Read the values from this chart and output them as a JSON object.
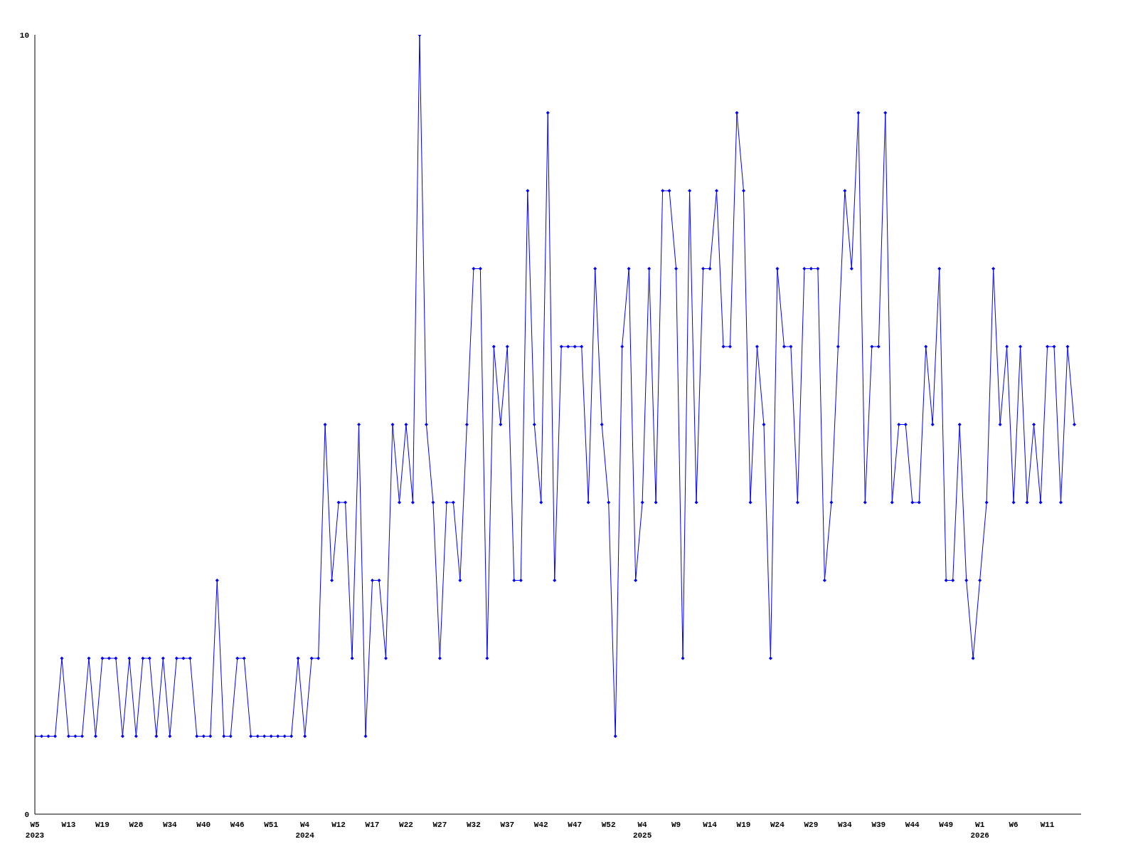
{
  "chart_data": {
    "type": "line",
    "categories": [
      "W5\n2023",
      null,
      null,
      null,
      null,
      "W13",
      null,
      null,
      null,
      null,
      "W19",
      null,
      null,
      null,
      null,
      "W28",
      null,
      null,
      null,
      null,
      "W34",
      null,
      null,
      null,
      null,
      "W40",
      null,
      null,
      null,
      null,
      "W46",
      null,
      null,
      null,
      null,
      "W51",
      null,
      null,
      null,
      null,
      "W4\n2024",
      null,
      null,
      null,
      null,
      "W12",
      null,
      null,
      null,
      null,
      "W17",
      null,
      null,
      null,
      null,
      "W22",
      null,
      null,
      null,
      null,
      "W27",
      null,
      null,
      null,
      null,
      "W32",
      null,
      null,
      null,
      null,
      "W37",
      null,
      null,
      null,
      null,
      "W42",
      null,
      null,
      null,
      null,
      "W47",
      null,
      null,
      null,
      null,
      "W52",
      null,
      null,
      null,
      null,
      "W4\n2025",
      null,
      null,
      null,
      null,
      "W9",
      null,
      null,
      null,
      null,
      "W14",
      null,
      null,
      null,
      null,
      "W19",
      null,
      null,
      null,
      null,
      "W24",
      null,
      null,
      null,
      null,
      "W29",
      null,
      null,
      null,
      null,
      "W34",
      null,
      null,
      null,
      null,
      "W39",
      null,
      null,
      null,
      null,
      "W44",
      null,
      null,
      null,
      null,
      "W49",
      null,
      null,
      null,
      null,
      "W1\n2026",
      null,
      null,
      null,
      null,
      "W6",
      null,
      null,
      null,
      null,
      "W11",
      null,
      null,
      null,
      null
    ],
    "series": [
      {
        "color": "#0000ff",
        "values": [
          1,
          1,
          1,
          1,
          2,
          1,
          1,
          1,
          2,
          1,
          2,
          2,
          2,
          1,
          2,
          1,
          2,
          2,
          1,
          2,
          1,
          2,
          2,
          2,
          1,
          1,
          1,
          3,
          1,
          1,
          2,
          2,
          1,
          1,
          1,
          1,
          1,
          1,
          1,
          2,
          1,
          2,
          2,
          5,
          3,
          4,
          4,
          2,
          5,
          1,
          3,
          3,
          2,
          5,
          4,
          5,
          4,
          10,
          5,
          4,
          2,
          4,
          4,
          3,
          5,
          7,
          7,
          2,
          6,
          5,
          6,
          3,
          3,
          8,
          5,
          4,
          9,
          3,
          6,
          6,
          6,
          6,
          4,
          7,
          5,
          4,
          1,
          6,
          7,
          3,
          4,
          7,
          4,
          8,
          8,
          7,
          2,
          8,
          4,
          7,
          7,
          8,
          6,
          6,
          9,
          8,
          4,
          6,
          5,
          2,
          7,
          6,
          6,
          4,
          7,
          7,
          7,
          3,
          4,
          6,
          8,
          7,
          9,
          4,
          6,
          6,
          9,
          4,
          5,
          5,
          4,
          4,
          6,
          5,
          7,
          3,
          3,
          5,
          3,
          2,
          3,
          4,
          7,
          5,
          6,
          4,
          6,
          4,
          5,
          4,
          6,
          6,
          4,
          6,
          5
        ]
      }
    ],
    "ylim": [
      0,
      10
    ],
    "yticks": [
      0,
      10
    ],
    "grid": false,
    "legend": false,
    "marker": "diamond",
    "line_style": "solid"
  }
}
